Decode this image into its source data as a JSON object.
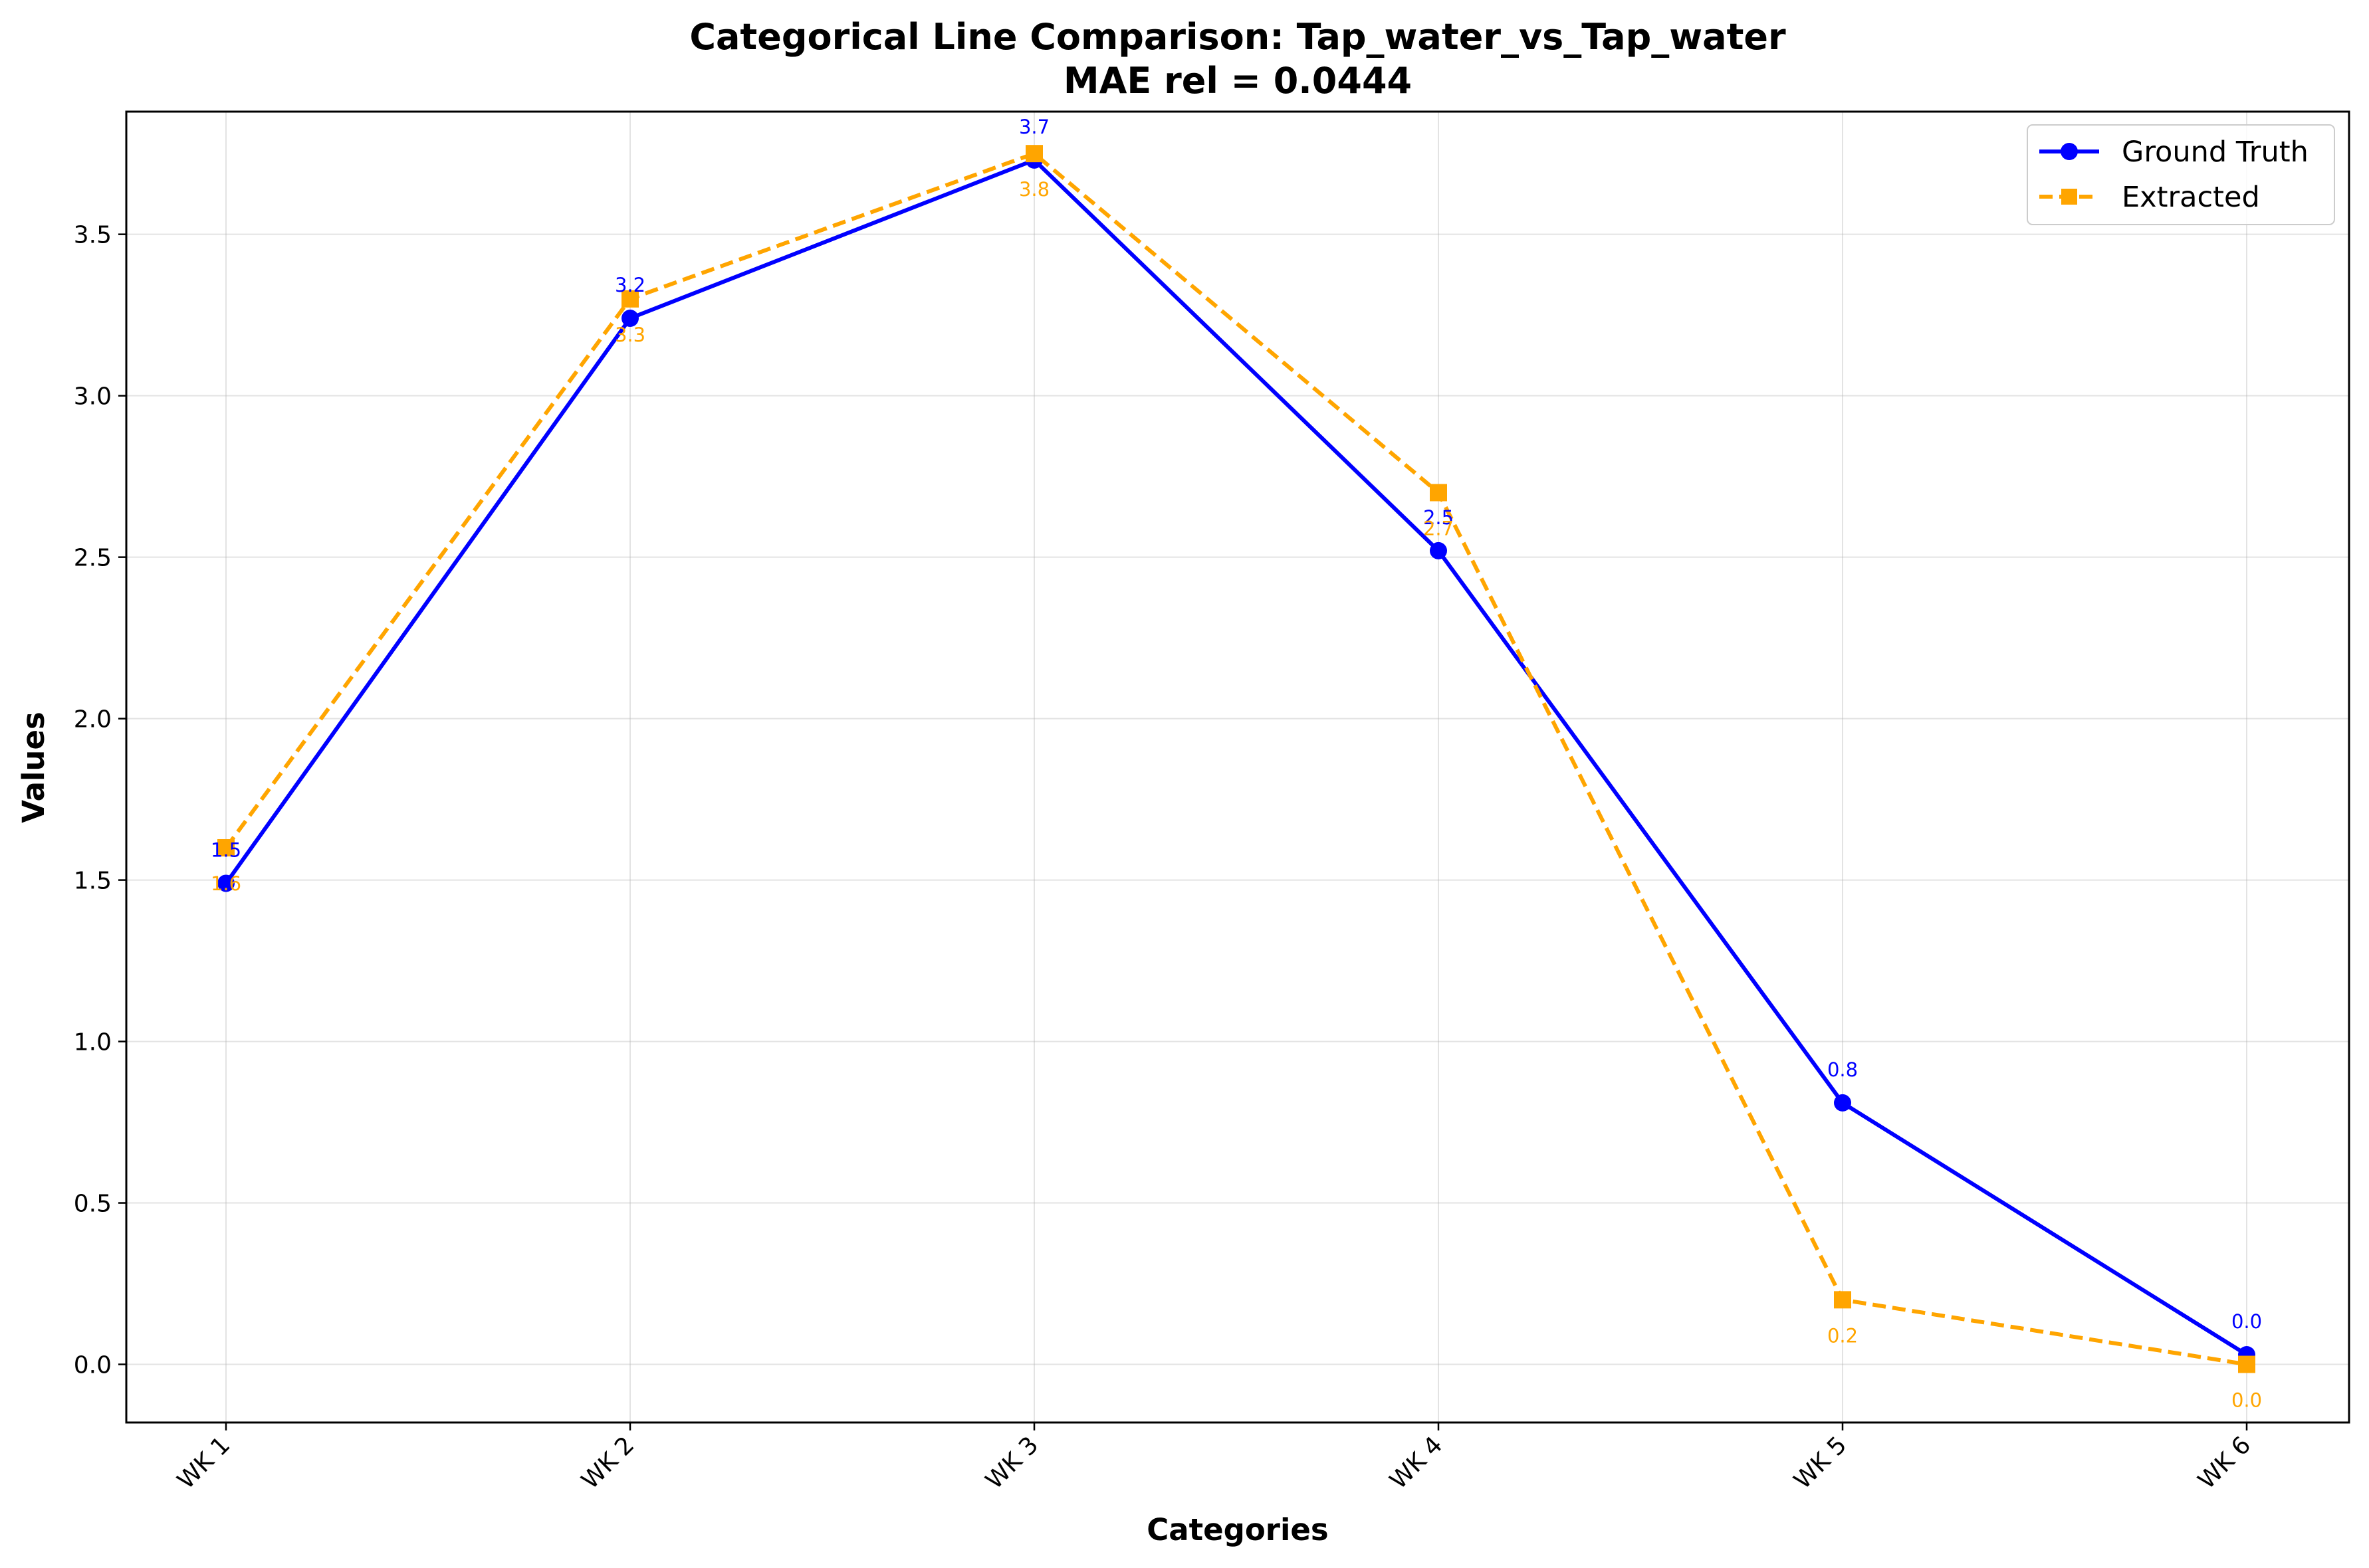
{
  "chart_data": {
    "type": "line",
    "title": "Categorical Line Comparison: Tap_water_vs_Tap_water",
    "subtitle": "MAE rel = 0.0444",
    "xlabel": "Categories",
    "ylabel": "Values",
    "categories": [
      "WK 1",
      "WK 2",
      "WK 3",
      "WK 4",
      "WK 5",
      "WK 6"
    ],
    "ylim": [
      -0.18,
      3.88
    ],
    "yticks": [
      0.0,
      0.5,
      1.0,
      1.5,
      2.0,
      2.5,
      3.0,
      3.5
    ],
    "ytick_labels": [
      "0.0",
      "0.5",
      "1.0",
      "1.5",
      "2.0",
      "2.5",
      "3.0",
      "3.5"
    ],
    "grid": true,
    "legend_position": "top-right",
    "series": [
      {
        "name": "Ground Truth",
        "values": [
          1.49,
          3.24,
          3.73,
          2.52,
          0.81,
          0.03
        ],
        "labels": [
          "1.5",
          "3.2",
          "3.7",
          "2.5",
          "0.8",
          "0.0"
        ],
        "color": "#0000ff",
        "marker": "circle",
        "line_style": "solid",
        "label_position": "above"
      },
      {
        "name": "Extracted",
        "values": [
          1.6,
          3.3,
          3.75,
          2.7,
          0.2,
          0.0
        ],
        "labels": [
          "1.6",
          "3.3",
          "3.8",
          "2.7",
          "0.2",
          "0.0"
        ],
        "color": "#ffa500",
        "marker": "square",
        "line_style": "dashed",
        "label_position": "below"
      }
    ]
  }
}
